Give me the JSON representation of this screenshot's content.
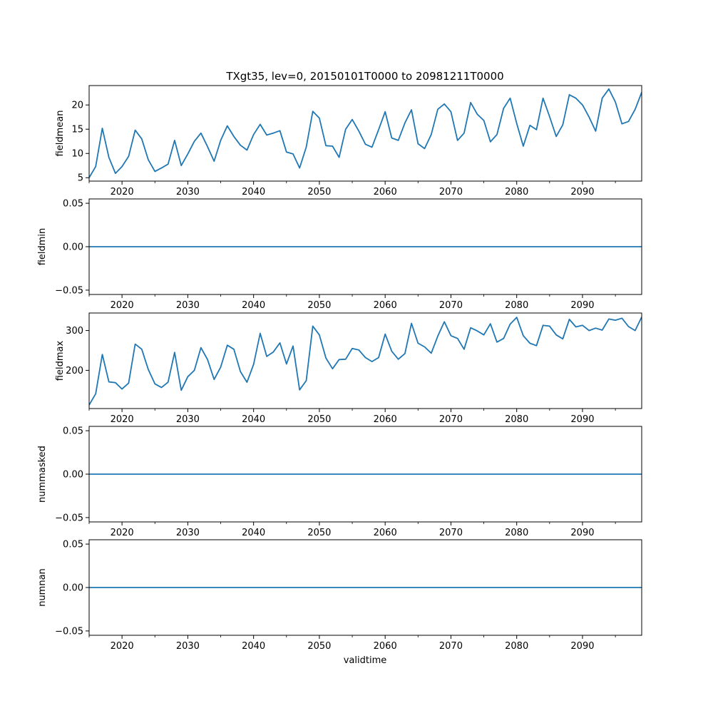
{
  "figure": {
    "title": "TXgt35, lev=0, 20150101T0000 to 20981211T0000",
    "xlabel": "validtime"
  },
  "colors": {
    "line": "#1f77b4",
    "axis": "#000000",
    "background": "#ffffff"
  },
  "chart_data": [
    {
      "type": "line",
      "name": "fieldmean",
      "ylabel": "fieldmean",
      "xlim": [
        2015,
        2099
      ],
      "ylim": [
        4.3,
        24.0
      ],
      "x_ticks": [
        2020,
        2030,
        2040,
        2050,
        2060,
        2070,
        2080,
        2090
      ],
      "x_tick_labels": [
        "2020",
        "2030",
        "2040",
        "2050",
        "2060",
        "2070",
        "2080",
        "2090"
      ],
      "y_ticks": [
        5,
        10,
        15,
        20
      ],
      "y_tick_labels": [
        "5",
        "10",
        "15",
        "20"
      ],
      "x_start": 2015,
      "values": [
        5.0,
        7.3,
        15.2,
        9.2,
        5.9,
        7.3,
        9.4,
        14.8,
        13.0,
        8.7,
        6.3,
        7.0,
        7.8,
        12.7,
        7.5,
        9.9,
        12.5,
        14.2,
        11.4,
        8.4,
        12.7,
        15.7,
        13.5,
        11.7,
        10.7,
        13.9,
        16.0,
        13.8,
        14.2,
        14.7,
        10.3,
        9.9,
        7.0,
        11.3,
        18.7,
        17.3,
        11.6,
        11.5,
        9.2,
        15.0,
        17.0,
        14.6,
        11.9,
        11.3,
        14.9,
        18.6,
        13.2,
        12.7,
        16.3,
        19.0,
        12.0,
        11.0,
        13.9,
        19.1,
        20.2,
        18.6,
        12.7,
        14.2,
        20.5,
        18.1,
        16.8,
        12.4,
        13.9,
        19.3,
        21.4,
        16.2,
        11.5,
        15.8,
        14.9,
        21.4,
        17.6,
        13.5,
        15.9,
        22.1,
        21.4,
        20.0,
        17.5,
        14.6,
        21.4,
        23.3,
        20.6,
        16.1,
        16.6,
        19.1,
        22.6
      ]
    },
    {
      "type": "line",
      "name": "fieldmin",
      "ylabel": "fieldmin",
      "xlim": [
        2015,
        2099
      ],
      "ylim": [
        -0.055,
        0.055
      ],
      "x_ticks": [
        2020,
        2030,
        2040,
        2050,
        2060,
        2070,
        2080,
        2090
      ],
      "x_tick_labels": [
        "2020",
        "2030",
        "2040",
        "2050",
        "2060",
        "2070",
        "2080",
        "2090"
      ],
      "y_ticks": [
        0.05,
        0.0,
        -0.05
      ],
      "y_tick_labels": [
        "0.05",
        "0.00",
        "−0.05"
      ],
      "x_start": 2015,
      "constant": 0.0
    },
    {
      "type": "line",
      "name": "fieldmax",
      "ylabel": "fieldmax",
      "xlim": [
        2015,
        2099
      ],
      "ylim": [
        104,
        344
      ],
      "x_ticks": [
        2020,
        2030,
        2040,
        2050,
        2060,
        2070,
        2080,
        2090
      ],
      "x_tick_labels": [
        "2020",
        "2030",
        "2040",
        "2050",
        "2060",
        "2070",
        "2080",
        "2090"
      ],
      "y_ticks": [
        200,
        300
      ],
      "y_tick_labels": [
        "200",
        "300"
      ],
      "x_start": 2015,
      "values": [
        113,
        141,
        240,
        171,
        169,
        153,
        168,
        266,
        253,
        202,
        166,
        157,
        170,
        245,
        150,
        184,
        200,
        257,
        227,
        177,
        208,
        263,
        253,
        197,
        170,
        215,
        293,
        235,
        246,
        269,
        216,
        261,
        151,
        174,
        311,
        289,
        231,
        204,
        227,
        228,
        255,
        251,
        232,
        222,
        232,
        291,
        248,
        228,
        242,
        318,
        268,
        259,
        243,
        286,
        322,
        287,
        280,
        253,
        307,
        299,
        289,
        317,
        271,
        280,
        316,
        333,
        287,
        268,
        262,
        313,
        311,
        289,
        279,
        328,
        309,
        313,
        300,
        306,
        301,
        329,
        326,
        331,
        310,
        300,
        334
      ]
    },
    {
      "type": "line",
      "name": "nummasked",
      "ylabel": "nummasked",
      "xlim": [
        2015,
        2099
      ],
      "ylim": [
        -0.055,
        0.055
      ],
      "x_ticks": [
        2020,
        2030,
        2040,
        2050,
        2060,
        2070,
        2080,
        2090
      ],
      "x_tick_labels": [
        "2020",
        "2030",
        "2040",
        "2050",
        "2060",
        "2070",
        "2080",
        "2090"
      ],
      "y_ticks": [
        0.05,
        0.0,
        -0.05
      ],
      "y_tick_labels": [
        "0.05",
        "0.00",
        "−0.05"
      ],
      "x_start": 2015,
      "constant": 0.0
    },
    {
      "type": "line",
      "name": "numnan",
      "ylabel": "numnan",
      "xlim": [
        2015,
        2099
      ],
      "ylim": [
        -0.055,
        0.055
      ],
      "x_ticks": [
        2020,
        2030,
        2040,
        2050,
        2060,
        2070,
        2080,
        2090
      ],
      "x_tick_labels": [
        "2020",
        "2030",
        "2040",
        "2050",
        "2060",
        "2070",
        "2080",
        "2090"
      ],
      "y_ticks": [
        0.05,
        0.0,
        -0.05
      ],
      "y_tick_labels": [
        "0.05",
        "0.00",
        "−0.05"
      ],
      "x_start": 2015,
      "constant": 0.0
    }
  ]
}
